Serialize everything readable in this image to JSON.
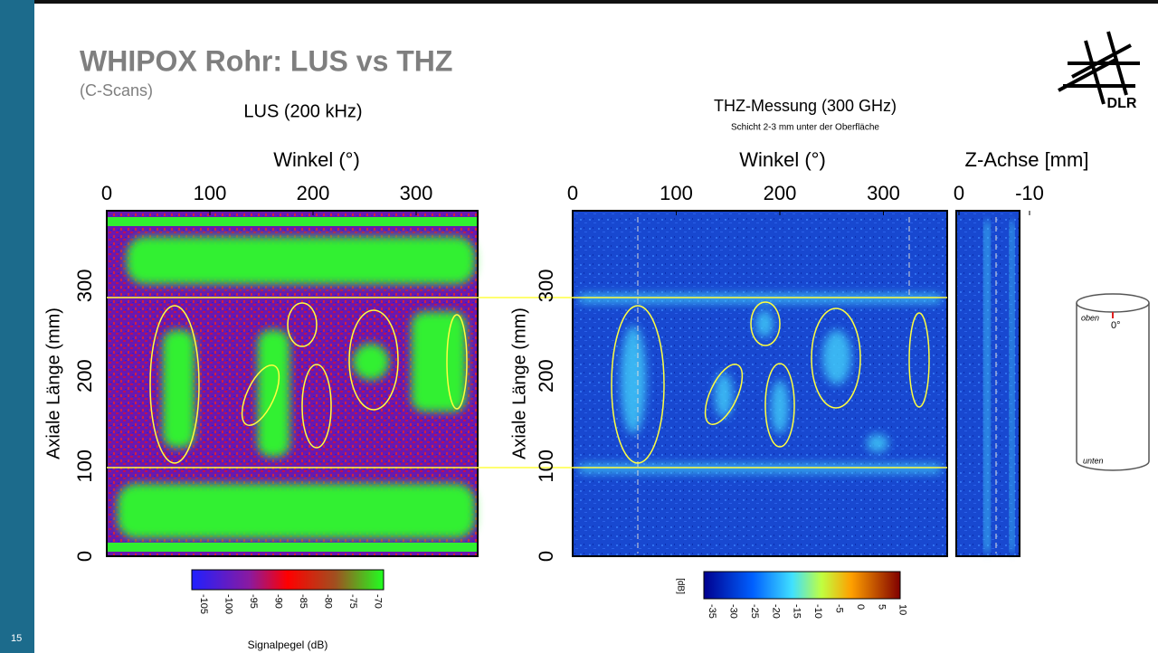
{
  "header": {
    "title": "WHIPOX Rohr: LUS vs THZ",
    "subtitle": "(C-Scans)"
  },
  "page_number": "15",
  "logo": "DLR",
  "lus": {
    "title": "LUS (200 kHz)",
    "x_label": "Winkel (°)",
    "x_ticks": [
      "0",
      "100",
      "200",
      "300"
    ],
    "y_label": "Axiale Länge (mm)",
    "y_ticks": [
      "0",
      "100",
      "200",
      "300"
    ],
    "colorbar": {
      "ticks": [
        "-105",
        "-100",
        "-95",
        "-90",
        "-85",
        "-80",
        "-75",
        "-70"
      ],
      "label": "Signalpegel (dB)"
    }
  },
  "thz": {
    "title": "THZ-Messung (300 GHz)",
    "subtitle": "Schicht 2-3 mm unter der Oberfläche",
    "x_label": "Winkel (°)",
    "x_ticks": [
      "0",
      "100",
      "200",
      "300"
    ],
    "y_label": "Axiale Länge (mm)",
    "y_ticks": [
      "0",
      "100",
      "200",
      "300"
    ],
    "z_axis": {
      "label": "Z-Achse [mm]",
      "ticks": [
        "0",
        "-10"
      ]
    },
    "colorbar": {
      "unit": "[dB]",
      "ticks": [
        "-35",
        "-30",
        "-25",
        "-20",
        "-15",
        "-10",
        "-5",
        "0",
        "5",
        "10"
      ]
    }
  },
  "diagram": {
    "top": "oben",
    "angle": "0°",
    "bottom": "unten"
  }
}
